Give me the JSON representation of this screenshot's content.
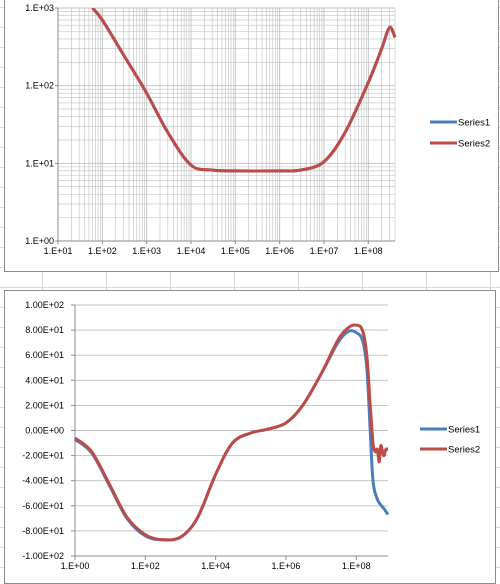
{
  "colors": {
    "series1": "#4a7ebb",
    "series2": "#be4b48",
    "grid": "#bfbfbf",
    "axis": "#8c8c8c"
  },
  "chart_data": [
    {
      "type": "line",
      "title": "",
      "xlabel": "",
      "ylabel": "",
      "xscale": "log",
      "yscale": "log",
      "xlim": [
        10,
        400000000
      ],
      "ylim": [
        1,
        1000
      ],
      "xticks": [
        "1.E+01",
        "1.E+02",
        "1.E+03",
        "1.E+04",
        "1.E+05",
        "1.E+06",
        "1.E+07",
        "1.E+08"
      ],
      "yticks": [
        "1.E+00",
        "1.E+01",
        "1.E+02",
        "1.E+03"
      ],
      "grid": "major and minor",
      "legend": "right",
      "series": [
        {
          "name": "Series1",
          "x": [
            60,
            100,
            300,
            1000,
            3000,
            10000,
            30000,
            100000,
            1000000,
            3000000,
            10000000,
            30000000,
            100000000,
            200000000,
            300000000,
            400000000
          ],
          "y": [
            1000,
            700,
            250,
            80,
            25,
            9.5,
            8.2,
            8.0,
            8.0,
            8.2,
            10.5,
            25,
            110,
            300,
            560,
            420
          ]
        },
        {
          "name": "Series2",
          "x": [
            60,
            100,
            300,
            1000,
            3000,
            10000,
            30000,
            100000,
            1000000,
            3000000,
            10000000,
            30000000,
            100000000,
            200000000,
            300000000,
            400000000
          ],
          "y": [
            1000,
            700,
            250,
            80,
            25,
            9.5,
            8.2,
            8.0,
            8.0,
            8.2,
            10.5,
            25,
            110,
            300,
            560,
            420
          ]
        }
      ]
    },
    {
      "type": "line",
      "title": "",
      "xlabel": "",
      "ylabel": "",
      "xscale": "log",
      "xlim": [
        1,
        800000000
      ],
      "ylim": [
        -100,
        100
      ],
      "xticks": [
        "1.E+00",
        "1.E+02",
        "1.E+04",
        "1.E+06",
        "1.E+08"
      ],
      "yticks": [
        "1.00E+02",
        "8.00E+01",
        "6.00E+01",
        "4.00E+01",
        "2.00E+01",
        "0.00E+00",
        "-2.00E+01",
        "-4.00E+01",
        "-6.00E+01",
        "-8.00E+01",
        "-1.00E+02"
      ],
      "grid": "horizontal",
      "legend": "right",
      "series": [
        {
          "name": "Series1",
          "x": [
            1,
            3,
            10,
            30,
            100,
            300,
            1000,
            3000,
            10000,
            30000,
            100000,
            300000,
            1000000,
            3000000,
            10000000,
            30000000,
            60000000,
            100000000,
            150000000,
            200000000,
            250000000,
            300000000,
            400000000,
            600000000,
            800000000
          ],
          "y": [
            -7,
            -18,
            -45,
            -70,
            -84,
            -87,
            -85,
            -70,
            -35,
            -10,
            -2,
            1,
            6,
            20,
            45,
            70,
            79,
            78,
            72,
            50,
            0,
            -40,
            -55,
            -62,
            -67
          ]
        },
        {
          "name": "Series2",
          "x": [
            1,
            3,
            10,
            30,
            100,
            300,
            1000,
            3000,
            10000,
            30000,
            100000,
            300000,
            1000000,
            3000000,
            10000000,
            30000000,
            60000000,
            100000000,
            150000000,
            200000000,
            250000000,
            300000000,
            350000000,
            400000000,
            450000000,
            500000000,
            600000000,
            700000000,
            800000000
          ],
          "y": [
            -6,
            -17,
            -44,
            -69,
            -83,
            -87,
            -85,
            -70,
            -35,
            -10,
            -2,
            1,
            6,
            20,
            45,
            72,
            82,
            84,
            80,
            60,
            20,
            -10,
            -17,
            -15,
            -25,
            -12,
            -20,
            -15,
            -15
          ]
        }
      ]
    }
  ]
}
